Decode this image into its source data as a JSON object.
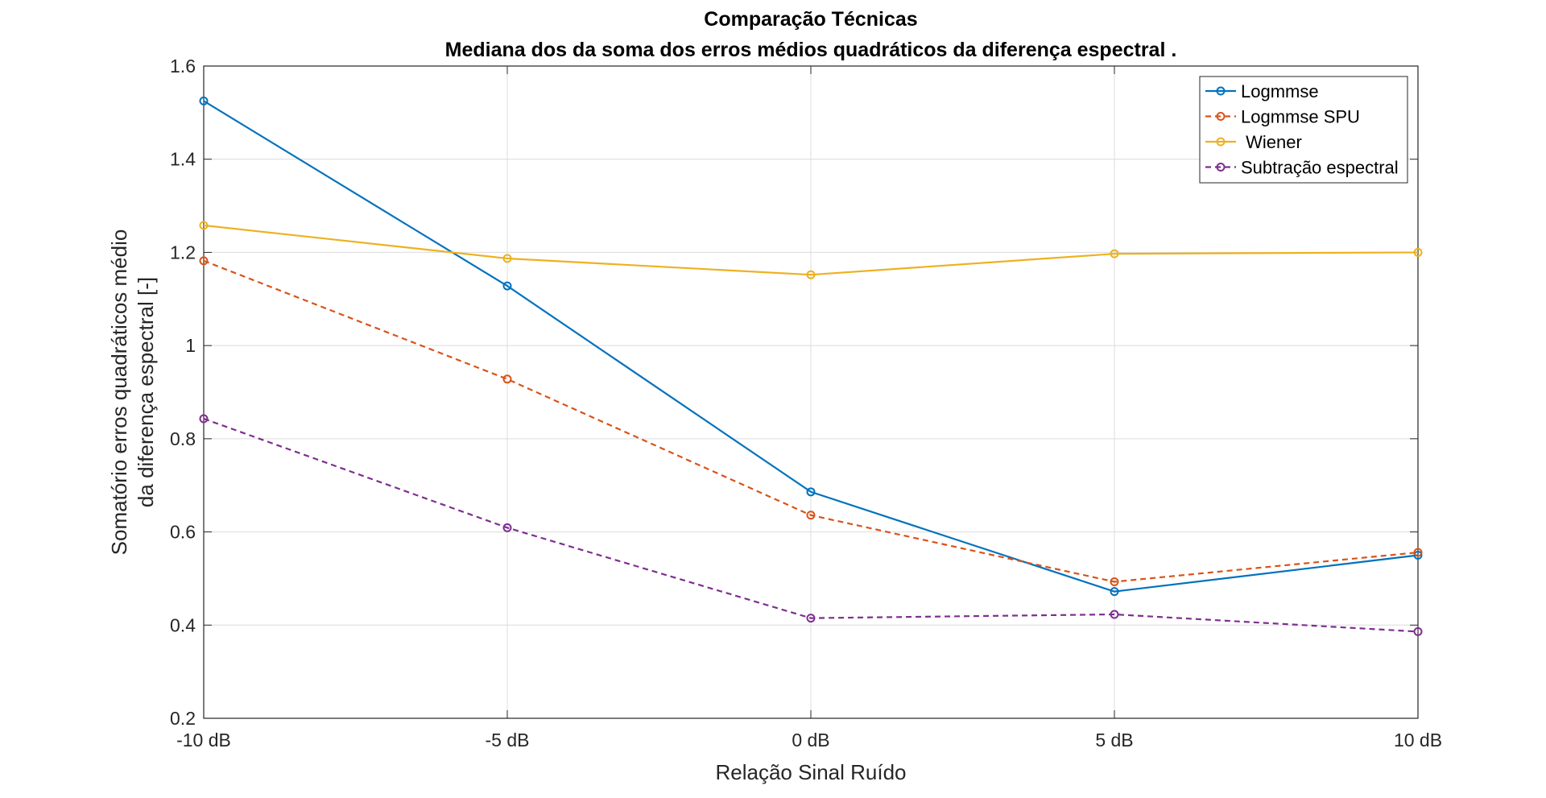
{
  "chart_data": {
    "type": "line",
    "title": "Comparação Técnicas",
    "subtitle": "Mediana dos da soma dos erros médios quadráticos da diferença espectral .",
    "xlabel": "Relação Sinal Ruído",
    "ylabel": [
      "Somatório erros quadráticos médio",
      "da diferença espectral [-]"
    ],
    "categories": [
      "-10 dB",
      "-5 dB",
      "0 dB",
      "5 dB",
      "10 dB"
    ],
    "x": [
      -10,
      -5,
      0,
      5,
      10
    ],
    "xlim": [
      -10,
      10
    ],
    "ylim": [
      0.2,
      1.6
    ],
    "yticks": [
      0.2,
      0.4,
      0.6,
      0.8,
      1.0,
      1.2,
      1.4,
      1.6
    ],
    "ytick_labels": [
      "0.2",
      "0.4",
      "0.6",
      "0.8",
      "1",
      "1.2",
      "1.4",
      "1.6"
    ],
    "grid": true,
    "legend_position": "top-right",
    "series": [
      {
        "name": "Logmmse",
        "values": [
          1.525,
          1.128,
          0.686,
          0.472,
          0.55
        ],
        "color": "#0072BD",
        "dashed": false
      },
      {
        "name": "Logmmse SPU",
        "values": [
          1.182,
          0.928,
          0.636,
          0.493,
          0.556
        ],
        "color": "#D95319",
        "dashed": true
      },
      {
        "name": " Wiener",
        "values": [
          1.258,
          1.187,
          1.152,
          1.197,
          1.2
        ],
        "color": "#EDB120",
        "dashed": false
      },
      {
        "name": "Subtração espectral",
        "values": [
          0.843,
          0.609,
          0.415,
          0.423,
          0.386
        ],
        "color": "#7E2F8E",
        "dashed": true
      }
    ]
  }
}
